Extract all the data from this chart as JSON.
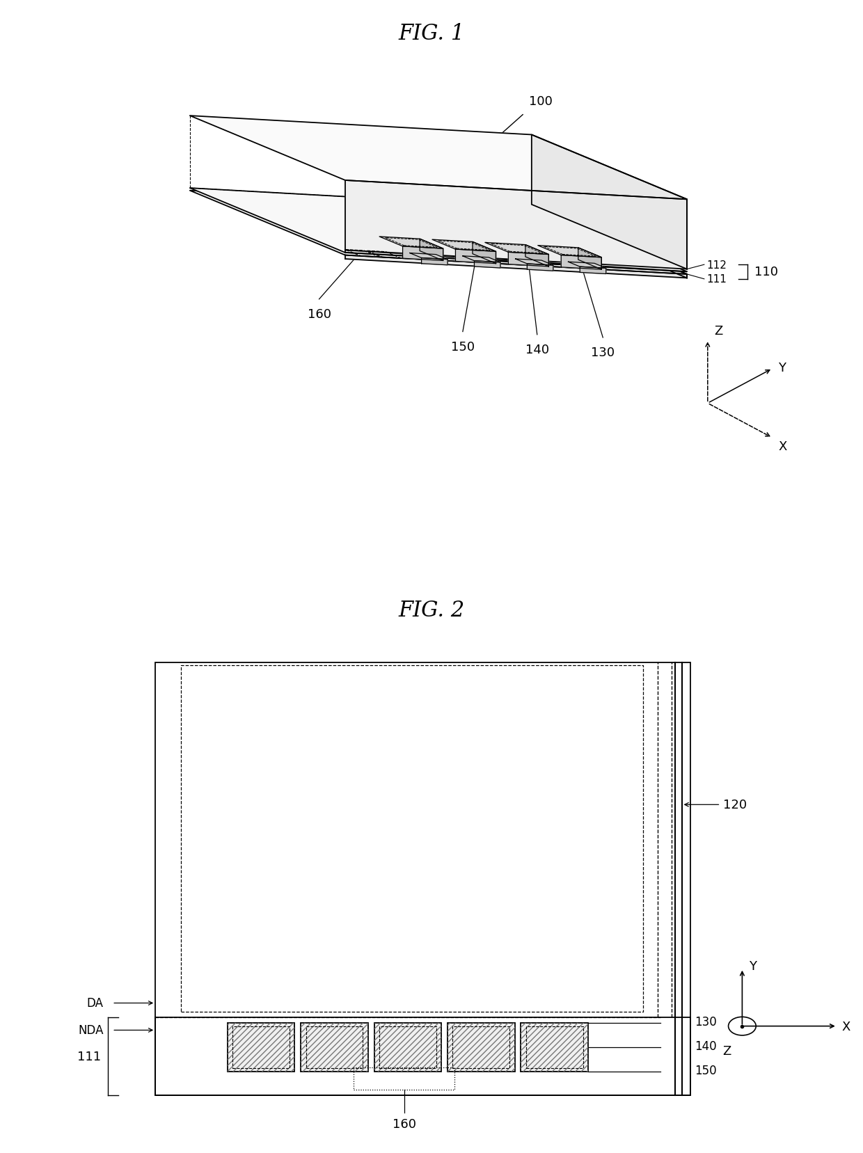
{
  "fig1_title": "FIG. 1",
  "fig2_title": "FIG. 2",
  "background_color": "#ffffff",
  "line_color": "#000000",
  "label_100": "100",
  "label_110": "110",
  "label_111": "111",
  "label_112": "112",
  "label_130": "130",
  "label_140": "140",
  "label_150": "150",
  "label_160": "160",
  "label_120": "120",
  "label_DA": "DA",
  "label_NDA": "NDA",
  "label_Z1": "Z",
  "label_Y1": "Y",
  "label_X1": "X",
  "label_Y2": "Y",
  "label_X2": "X",
  "label_Z2": "Z",
  "title_fontsize": 22,
  "label_fontsize": 13
}
